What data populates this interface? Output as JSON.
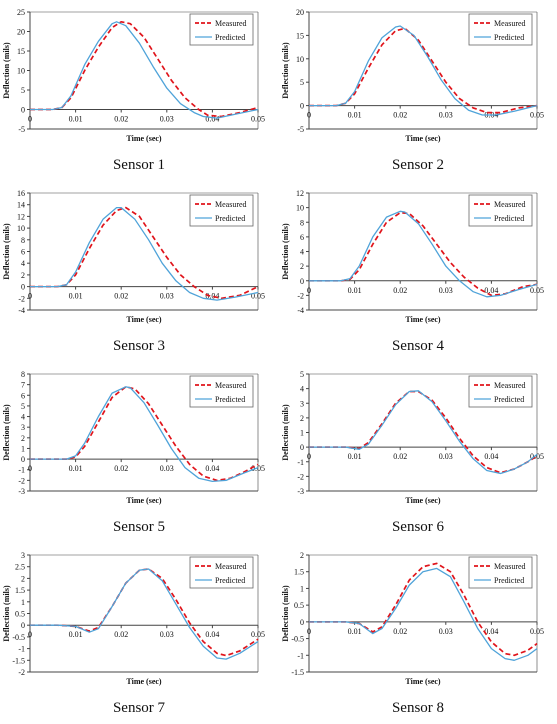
{
  "figure": {
    "x_axis_label": "Time (sec)",
    "y_axis_label": "Deflection (mils)",
    "legend": {
      "measured": "Measured",
      "predicted": "Predicted"
    },
    "colors": {
      "measured": "#e0141b",
      "predicted": "#4fa3d9",
      "axis": "#444444",
      "text": "#111111"
    }
  },
  "chart_data": [
    {
      "type": "line",
      "caption": "Sensor 1",
      "xlabel": "Time (sec)",
      "ylabel": "Deflection (mils)",
      "xlim": [
        0,
        0.05
      ],
      "ylim": [
        -5,
        25
      ],
      "xticks": [
        "0",
        "0.01",
        "0.02",
        "0.03",
        "0.04",
        "0.05"
      ],
      "yticks": [
        "-5",
        "0",
        "5",
        "10",
        "15",
        "20",
        "25"
      ],
      "legend_position": "top-right",
      "grid": false,
      "series": [
        {
          "name": "Measured",
          "style": "dashed",
          "color": "#e0141b",
          "x": [
            0,
            0.005,
            0.007,
            0.009,
            0.012,
            0.015,
            0.018,
            0.02,
            0.022,
            0.025,
            0.028,
            0.031,
            0.034,
            0.037,
            0.039,
            0.042,
            0.046,
            0.05
          ],
          "y": [
            0,
            0,
            0.5,
            3,
            10,
            16,
            21,
            22.5,
            22,
            18.5,
            13,
            7.5,
            3,
            0,
            -1.5,
            -1.8,
            -0.8,
            0.5
          ]
        },
        {
          "name": "Predicted",
          "style": "solid",
          "color": "#4fa3d9",
          "x": [
            0,
            0.005,
            0.007,
            0.009,
            0.012,
            0.015,
            0.018,
            0.019,
            0.021,
            0.024,
            0.027,
            0.03,
            0.033,
            0.036,
            0.038,
            0.041,
            0.045,
            0.05
          ],
          "y": [
            0,
            0,
            0.5,
            3.5,
            11.5,
            17.5,
            22,
            22.5,
            21.5,
            17,
            11,
            5.5,
            1.5,
            -0.8,
            -1.8,
            -2.2,
            -1.2,
            0
          ]
        }
      ]
    },
    {
      "type": "line",
      "caption": "Sensor 2",
      "xlabel": "Time (sec)",
      "ylabel": "Deflection (mils)",
      "xlim": [
        0,
        0.05
      ],
      "ylim": [
        -5,
        20
      ],
      "xticks": [
        "0",
        "0.01",
        "0.02",
        "0.03",
        "0.04",
        "0.05"
      ],
      "yticks": [
        "-5",
        "0",
        "5",
        "10",
        "15",
        "20"
      ],
      "legend_position": "top-right",
      "grid": false,
      "series": [
        {
          "name": "Measured",
          "style": "dashed",
          "color": "#e0141b",
          "x": [
            0,
            0.006,
            0.008,
            0.01,
            0.013,
            0.016,
            0.019,
            0.021,
            0.024,
            0.027,
            0.03,
            0.033,
            0.036,
            0.039,
            0.042,
            0.046,
            0.05
          ],
          "y": [
            0,
            0,
            0.5,
            2.5,
            8,
            13,
            16,
            16.5,
            14,
            9.5,
            5,
            1.5,
            -0.5,
            -1.5,
            -1.5,
            -0.5,
            0
          ]
        },
        {
          "name": "Predicted",
          "style": "solid",
          "color": "#4fa3d9",
          "x": [
            0,
            0.006,
            0.008,
            0.01,
            0.013,
            0.016,
            0.019,
            0.02,
            0.023,
            0.026,
            0.029,
            0.032,
            0.035,
            0.038,
            0.041,
            0.045,
            0.05
          ],
          "y": [
            0,
            0,
            0.5,
            3,
            9.5,
            14.5,
            16.8,
            17,
            15,
            10.5,
            5.5,
            1.5,
            -1,
            -2,
            -2,
            -1.2,
            0
          ]
        }
      ]
    },
    {
      "type": "line",
      "caption": "Sensor 3",
      "xlabel": "Time (sec)",
      "ylabel": "Deflection (mils)",
      "xlim": [
        0,
        0.05
      ],
      "ylim": [
        -4,
        16
      ],
      "xticks": [
        "0",
        "0.01",
        "0.02",
        "0.03",
        "0.04",
        "0.05"
      ],
      "yticks": [
        "-4",
        "-2",
        "0",
        "2",
        "4",
        "6",
        "8",
        "10",
        "12",
        "14",
        "16"
      ],
      "legend_position": "top-right",
      "grid": false,
      "series": [
        {
          "name": "Measured",
          "style": "dashed",
          "color": "#e0141b",
          "x": [
            0,
            0.006,
            0.008,
            0.01,
            0.013,
            0.016,
            0.019,
            0.021,
            0.024,
            0.027,
            0.03,
            0.033,
            0.036,
            0.039,
            0.042,
            0.046,
            0.05
          ],
          "y": [
            0,
            0,
            0.3,
            2,
            6.5,
            10.5,
            13,
            13.5,
            12,
            8.5,
            5,
            2,
            0,
            -1.5,
            -2,
            -1.5,
            0
          ]
        },
        {
          "name": "Predicted",
          "style": "solid",
          "color": "#4fa3d9",
          "x": [
            0,
            0.006,
            0.008,
            0.01,
            0.013,
            0.016,
            0.019,
            0.02,
            0.023,
            0.026,
            0.029,
            0.032,
            0.035,
            0.038,
            0.041,
            0.045,
            0.05
          ],
          "y": [
            0,
            0,
            0.3,
            2.5,
            7.5,
            11.5,
            13.5,
            13.5,
            11.5,
            8,
            4,
            1,
            -1,
            -2,
            -2.3,
            -1.8,
            -1
          ]
        }
      ]
    },
    {
      "type": "line",
      "caption": "Sensor 4",
      "xlabel": "Time (sec)",
      "ylabel": "Deflection (mils)",
      "xlim": [
        0,
        0.05
      ],
      "ylim": [
        -4,
        12
      ],
      "xticks": [
        "0",
        "0.01",
        "0.02",
        "0.03",
        "0.04",
        "0.05"
      ],
      "yticks": [
        "-4",
        "-2",
        "0",
        "2",
        "4",
        "6",
        "8",
        "10",
        "12"
      ],
      "legend_position": "top-right",
      "grid": false,
      "series": [
        {
          "name": "Measured",
          "style": "dashed",
          "color": "#e0141b",
          "x": [
            0,
            0.007,
            0.009,
            0.011,
            0.014,
            0.017,
            0.02,
            0.022,
            0.025,
            0.028,
            0.031,
            0.034,
            0.037,
            0.04,
            0.043,
            0.047,
            0.05
          ],
          "y": [
            0,
            0,
            0.2,
            1.5,
            5,
            8,
            9.3,
            9.2,
            7.5,
            5,
            2.5,
            0.5,
            -1,
            -2,
            -1.8,
            -0.8,
            -0.5
          ]
        },
        {
          "name": "Predicted",
          "style": "solid",
          "color": "#4fa3d9",
          "x": [
            0,
            0.007,
            0.009,
            0.011,
            0.014,
            0.017,
            0.02,
            0.021,
            0.024,
            0.027,
            0.03,
            0.033,
            0.036,
            0.039,
            0.042,
            0.046,
            0.05
          ],
          "y": [
            0,
            0,
            0.3,
            2,
            6,
            8.7,
            9.5,
            9.4,
            7.8,
            5,
            2,
            0,
            -1.5,
            -2.2,
            -2,
            -1.2,
            -0.5
          ]
        }
      ]
    },
    {
      "type": "line",
      "caption": "Sensor 5",
      "xlabel": "Time (sec)",
      "ylabel": "Deflection (mils)",
      "xlim": [
        0,
        0.05
      ],
      "ylim": [
        -3,
        8
      ],
      "xticks": [
        "0",
        "0.01",
        "0.02",
        "0.03",
        "0.04",
        "0.05"
      ],
      "yticks": [
        "-3",
        "-2",
        "-1",
        "0",
        "1",
        "2",
        "3",
        "4",
        "5",
        "6",
        "7",
        "8"
      ],
      "legend_position": "top-right",
      "grid": false,
      "series": [
        {
          "name": "Measured",
          "style": "dashed",
          "color": "#e0141b",
          "x": [
            0,
            0.008,
            0.01,
            0.012,
            0.015,
            0.018,
            0.021,
            0.023,
            0.026,
            0.029,
            0.032,
            0.035,
            0.038,
            0.041,
            0.044,
            0.047,
            0.05
          ],
          "y": [
            0,
            0,
            0.2,
            1.2,
            3.5,
            5.8,
            6.8,
            6.6,
            5.2,
            3.2,
            1.2,
            -0.5,
            -1.6,
            -2,
            -1.8,
            -1.2,
            -0.5
          ]
        },
        {
          "name": "Predicted",
          "style": "solid",
          "color": "#4fa3d9",
          "x": [
            0,
            0.008,
            0.01,
            0.012,
            0.015,
            0.018,
            0.021,
            0.022,
            0.025,
            0.028,
            0.031,
            0.034,
            0.037,
            0.04,
            0.043,
            0.047,
            0.05
          ],
          "y": [
            0,
            0,
            0.3,
            1.5,
            4,
            6.2,
            6.8,
            6.7,
            5.3,
            3.2,
            1,
            -0.8,
            -1.8,
            -2.1,
            -2,
            -1.3,
            -0.8
          ]
        }
      ]
    },
    {
      "type": "line",
      "caption": "Sensor 6",
      "xlabel": "Time (sec)",
      "ylabel": "Deflection (mils)",
      "xlim": [
        0,
        0.05
      ],
      "ylim": [
        -3,
        5
      ],
      "xticks": [
        "0",
        "0.01",
        "0.02",
        "0.03",
        "0.04",
        "0.05"
      ],
      "yticks": [
        "-3",
        "-2",
        "-1",
        "0",
        "1",
        "2",
        "3",
        "4",
        "5"
      ],
      "legend_position": "top-right",
      "grid": false,
      "series": [
        {
          "name": "Measured",
          "style": "dashed",
          "color": "#e0141b",
          "x": [
            0,
            0.008,
            0.011,
            0.013,
            0.016,
            0.019,
            0.022,
            0.024,
            0.027,
            0.03,
            0.033,
            0.036,
            0.039,
            0.042,
            0.045,
            0.048,
            0.05
          ],
          "y": [
            0,
            0,
            -0.1,
            0.3,
            1.6,
            3,
            3.8,
            3.8,
            3.2,
            2,
            0.6,
            -0.6,
            -1.4,
            -1.75,
            -1.5,
            -1,
            -0.6
          ]
        },
        {
          "name": "Predicted",
          "style": "solid",
          "color": "#4fa3d9",
          "x": [
            0,
            0.008,
            0.011,
            0.013,
            0.016,
            0.019,
            0.022,
            0.024,
            0.027,
            0.03,
            0.033,
            0.036,
            0.039,
            0.042,
            0.045,
            0.048,
            0.05
          ],
          "y": [
            0,
            0,
            -0.15,
            0.2,
            1.5,
            2.9,
            3.8,
            3.85,
            3.1,
            1.8,
            0.4,
            -0.8,
            -1.6,
            -1.8,
            -1.5,
            -1,
            -0.5
          ]
        }
      ]
    },
    {
      "type": "line",
      "caption": "Sensor 7",
      "xlabel": "Time (sec)",
      "ylabel": "Deflection (mils)",
      "xlim": [
        0,
        0.05
      ],
      "ylim": [
        -2,
        3
      ],
      "xticks": [
        "0",
        "0.01",
        "0.02",
        "0.03",
        "0.04",
        "0.05"
      ],
      "yticks": [
        "-2",
        "-1.5",
        "-1",
        "-0.5",
        "0",
        "0.5",
        "1",
        "1.5",
        "2",
        "2.5",
        "3"
      ],
      "legend_position": "top-right",
      "grid": false,
      "series": [
        {
          "name": "Measured",
          "style": "dashed",
          "color": "#e0141b",
          "x": [
            0,
            0.006,
            0.01,
            0.013,
            0.015,
            0.018,
            0.021,
            0.024,
            0.026,
            0.029,
            0.032,
            0.035,
            0.038,
            0.041,
            0.043,
            0.046,
            0.05
          ],
          "y": [
            0,
            0,
            -0.05,
            -0.25,
            -0.1,
            0.8,
            1.8,
            2.35,
            2.4,
            2,
            1.1,
            0.1,
            -0.7,
            -1.2,
            -1.3,
            -1.1,
            -0.6
          ]
        },
        {
          "name": "Predicted",
          "style": "solid",
          "color": "#4fa3d9",
          "x": [
            0,
            0.006,
            0.01,
            0.013,
            0.015,
            0.018,
            0.021,
            0.024,
            0.026,
            0.029,
            0.032,
            0.035,
            0.038,
            0.041,
            0.043,
            0.046,
            0.05
          ],
          "y": [
            0,
            0,
            -0.05,
            -0.3,
            -0.15,
            0.8,
            1.8,
            2.35,
            2.4,
            1.9,
            0.9,
            -0.1,
            -0.9,
            -1.4,
            -1.45,
            -1.2,
            -0.7
          ]
        }
      ]
    },
    {
      "type": "line",
      "caption": "Sensor 8",
      "xlabel": "Time (sec)",
      "ylabel": "Deflection (mils)",
      "xlim": [
        0,
        0.05
      ],
      "ylim": [
        -1.5,
        2
      ],
      "xticks": [
        "0",
        "0.01",
        "0.02",
        "0.03",
        "0.04",
        "0.05"
      ],
      "yticks": [
        "-1.5",
        "-1",
        "-0.5",
        "0",
        "0.5",
        "1",
        "1.5",
        "2"
      ],
      "legend_position": "top-right",
      "grid": false,
      "series": [
        {
          "name": "Measured",
          "style": "dashed",
          "color": "#e0141b",
          "x": [
            0,
            0.008,
            0.011,
            0.014,
            0.016,
            0.019,
            0.022,
            0.025,
            0.028,
            0.031,
            0.034,
            0.037,
            0.04,
            0.043,
            0.045,
            0.048,
            0.05
          ],
          "y": [
            0,
            0,
            -0.05,
            -0.3,
            -0.15,
            0.5,
            1.25,
            1.65,
            1.75,
            1.5,
            0.8,
            0,
            -0.6,
            -0.95,
            -1,
            -0.85,
            -0.65
          ]
        },
        {
          "name": "Predicted",
          "style": "solid",
          "color": "#4fa3d9",
          "x": [
            0,
            0.008,
            0.011,
            0.014,
            0.016,
            0.019,
            0.022,
            0.025,
            0.028,
            0.031,
            0.034,
            0.037,
            0.04,
            0.043,
            0.045,
            0.048,
            0.05
          ],
          "y": [
            0,
            0,
            -0.05,
            -0.35,
            -0.2,
            0.4,
            1.1,
            1.5,
            1.6,
            1.35,
            0.6,
            -0.2,
            -0.8,
            -1.1,
            -1.15,
            -1,
            -0.8
          ]
        }
      ]
    }
  ]
}
